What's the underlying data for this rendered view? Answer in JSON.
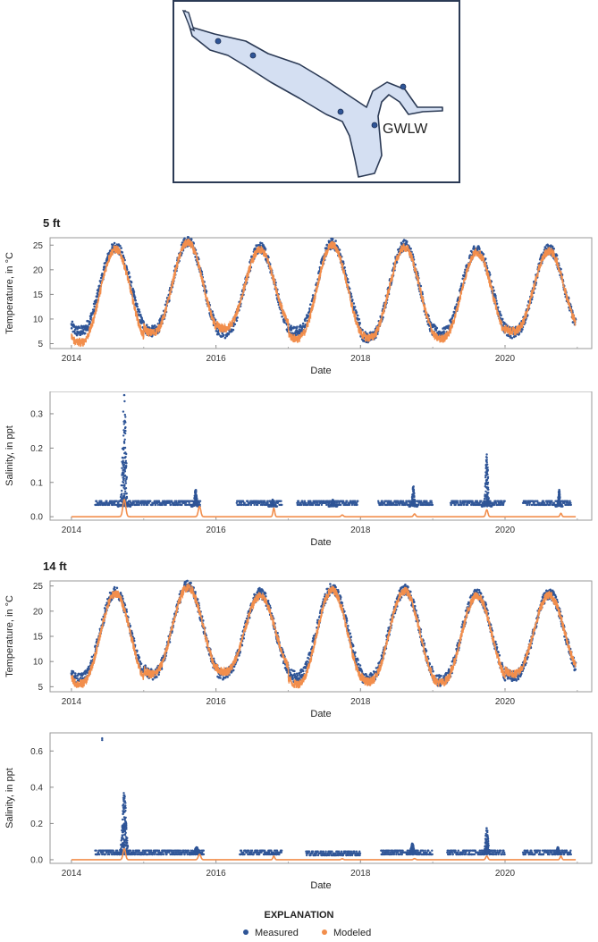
{
  "colors": {
    "measured": "#2f5597",
    "modeled": "#f28e4c",
    "water": "#d4dff2",
    "outline": "#2b3a55"
  },
  "inset_map": {
    "site_label": "GWLW"
  },
  "sections": [
    {
      "depth_label": "5 ft"
    },
    {
      "depth_label": "14 ft"
    }
  ],
  "chart_data": [
    {
      "type": "line",
      "section": "5 ft",
      "ylabel": "Temperature, in °C",
      "xlabel": "Date",
      "x_ticks": [
        "2014",
        "2016",
        "2018",
        "2020"
      ],
      "x_range": [
        "2013-09-15",
        "2021-03-15"
      ],
      "y_ticks": [
        "5",
        "10",
        "15",
        "20",
        "25"
      ],
      "ylim": [
        4,
        26.5
      ],
      "series": [
        {
          "name": "Measured",
          "style": "dots",
          "annual_peak_date": "08-10",
          "annual_min": [
            7.5,
            7.5,
            7.2,
            7.4,
            6.2,
            7.0,
            7.2
          ],
          "annual_max": [
            24.6,
            25.8,
            24.5,
            25.3,
            25.0,
            24.0,
            24.2
          ]
        },
        {
          "name": "Modeled",
          "style": "line",
          "annual_peak_date": "08-10",
          "annual_min": [
            5.2,
            7.2,
            8.0,
            6.0,
            6.2,
            6.0,
            7.5
          ],
          "annual_max": [
            24.2,
            25.5,
            24.0,
            25.0,
            24.5,
            23.5,
            23.8
          ]
        }
      ]
    },
    {
      "type": "scatter",
      "section": "5 ft",
      "ylabel": "Salinity, in ppt",
      "xlabel": "Date",
      "x_ticks": [
        "2014",
        "2016",
        "2018",
        "2020"
      ],
      "x_range": [
        "2013-09-15",
        "2021-03-15"
      ],
      "y_ticks": [
        "0.0",
        "0.1",
        "0.2",
        "0.3"
      ],
      "ylim": [
        -0.01,
        0.365
      ],
      "series": [
        {
          "name": "Measured",
          "style": "dots",
          "baseline_segments": [
            [
              "2014-05-01",
              "2015-10-15",
              0.04
            ],
            [
              "2016-04-15",
              "2016-12-01",
              0.04
            ],
            [
              "2017-02-15",
              "2017-12-20",
              0.04
            ],
            [
              "2018-04-01",
              "2018-12-31",
              0.04
            ],
            [
              "2019-04-01",
              "2019-12-31",
              0.04
            ],
            [
              "2020-04-01",
              "2020-12-01",
              0.04
            ]
          ],
          "spikes": [
            [
              "2014-09-25",
              0.36,
              0.09
            ],
            [
              "2015-09-20",
              0.08,
              0.06
            ],
            [
              "2016-10-15",
              0.05,
              0.06
            ],
            [
              "2017-08-15",
              0.05,
              0.06
            ],
            [
              "2018-09-25",
              0.09,
              0.06
            ],
            [
              "2019-10-01",
              0.19,
              0.07
            ],
            [
              "2020-10-01",
              0.08,
              0.05
            ]
          ]
        },
        {
          "name": "Modeled",
          "style": "line",
          "baseline": 0.0,
          "spikes": [
            [
              "2014-09-25",
              0.05,
              0.08
            ],
            [
              "2015-10-10",
              0.03,
              0.07
            ],
            [
              "2016-10-20",
              0.025,
              0.05
            ],
            [
              "2017-10-01",
              0.005,
              0.06
            ],
            [
              "2018-10-01",
              0.008,
              0.06
            ],
            [
              "2019-10-01",
              0.02,
              0.06
            ],
            [
              "2020-10-10",
              0.01,
              0.05
            ]
          ]
        }
      ]
    },
    {
      "type": "line",
      "section": "14 ft",
      "ylabel": "Temperature, in °C",
      "xlabel": "Date",
      "x_ticks": [
        "2014",
        "2016",
        "2018",
        "2020"
      ],
      "x_range": [
        "2013-09-15",
        "2021-03-15"
      ],
      "y_ticks": [
        "5",
        "10",
        "15",
        "20",
        "25"
      ],
      "ylim": [
        4,
        26
      ],
      "series": [
        {
          "name": "Measured",
          "style": "dots",
          "annual_peak_date": "08-10",
          "annual_min": [
            6.5,
            7.5,
            7.5,
            7.0,
            6.5,
            6.2,
            7.0
          ],
          "annual_max": [
            23.8,
            25.0,
            23.5,
            24.5,
            24.2,
            23.5,
            23.5
          ]
        },
        {
          "name": "Modeled",
          "style": "line",
          "annual_peak_date": "08-10",
          "annual_min": [
            5.5,
            7.5,
            8.0,
            5.5,
            6.0,
            5.8,
            7.5
          ],
          "annual_max": [
            23.5,
            24.8,
            23.0,
            24.2,
            24.0,
            23.0,
            23.2
          ]
        }
      ]
    },
    {
      "type": "scatter",
      "section": "14 ft",
      "ylabel": "Salinity, in ppt",
      "xlabel": "Date",
      "x_ticks": [
        "2014",
        "2016",
        "2018",
        "2020"
      ],
      "x_range": [
        "2013-09-15",
        "2021-03-15"
      ],
      "y_ticks": [
        "0.0",
        "0.2",
        "0.4",
        "0.6"
      ],
      "ylim": [
        -0.02,
        0.7
      ],
      "series": [
        {
          "name": "Measured",
          "style": "dots",
          "outliers": [
            [
              "2014-06-05",
              0.67
            ],
            [
              "2014-06-05",
              0.66
            ]
          ],
          "baseline_segments": [
            [
              "2014-05-01",
              "2015-11-01",
              0.04
            ],
            [
              "2016-05-01",
              "2016-12-01",
              0.04
            ],
            [
              "2017-04-01",
              "2017-12-31",
              0.035
            ],
            [
              "2018-04-15",
              "2018-12-31",
              0.04
            ],
            [
              "2019-03-15",
              "2019-12-31",
              0.04
            ],
            [
              "2020-04-01",
              "2020-12-01",
              0.04
            ]
          ],
          "spikes": [
            [
              "2014-09-25",
              0.39,
              0.1
            ],
            [
              "2015-09-25",
              0.07,
              0.1
            ],
            [
              "2016-10-15",
              0.04,
              0.06
            ],
            [
              "2018-09-20",
              0.09,
              0.08
            ],
            [
              "2019-10-01",
              0.18,
              0.07
            ],
            [
              "2020-09-25",
              0.07,
              0.05
            ]
          ]
        },
        {
          "name": "Modeled",
          "style": "line",
          "baseline": 0.0,
          "spikes": [
            [
              "2014-09-25",
              0.06,
              0.07
            ],
            [
              "2015-10-10",
              0.03,
              0.07
            ],
            [
              "2016-10-20",
              0.02,
              0.05
            ],
            [
              "2017-10-01",
              0.005,
              0.06
            ],
            [
              "2018-10-01",
              0.006,
              0.06
            ],
            [
              "2019-10-01",
              0.02,
              0.06
            ],
            [
              "2020-10-10",
              0.02,
              0.05
            ]
          ]
        }
      ]
    }
  ],
  "legend": {
    "title": "EXPLANATION",
    "items": [
      {
        "label": "Measured",
        "color_key": "measured"
      },
      {
        "label": "Modeled",
        "color_key": "modeled"
      }
    ]
  }
}
